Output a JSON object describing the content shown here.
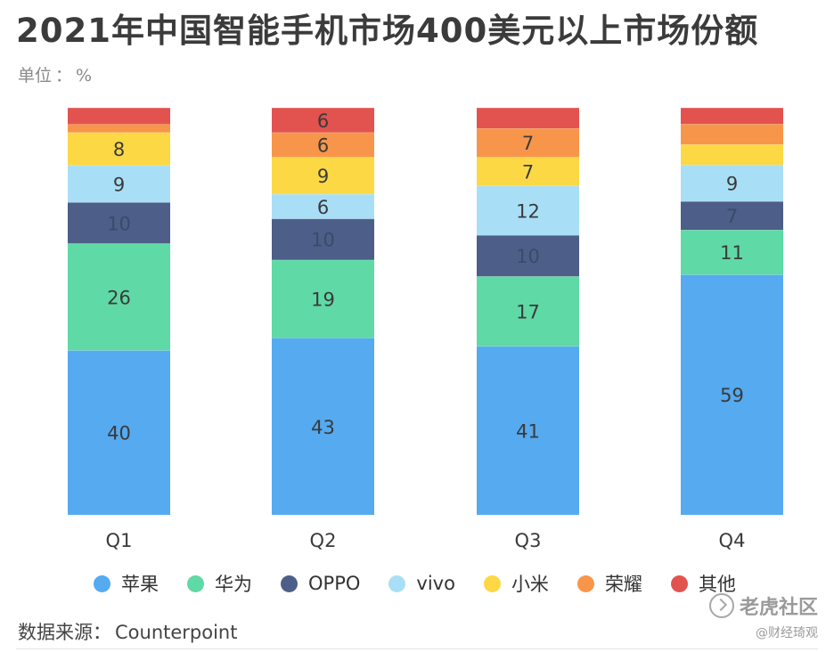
{
  "chart_data": {
    "type": "bar",
    "stacked": true,
    "title": "2021年中国智能手机市场400美元以上市场份额",
    "unit_label": "单位",
    "unit": "%",
    "categories": [
      "Q1",
      "Q2",
      "Q3",
      "Q4"
    ],
    "ylim": [
      0,
      100
    ],
    "series": [
      {
        "name": "苹果",
        "color": "#55aaf0",
        "values": [
          40,
          43,
          41,
          59
        ],
        "labels": [
          "40",
          "43",
          "41",
          "59"
        ]
      },
      {
        "name": "华为",
        "color": "#5fd9a6",
        "values": [
          26,
          19,
          17,
          11
        ],
        "labels": [
          "26",
          "19",
          "17",
          "11"
        ]
      },
      {
        "name": "OPPO",
        "color": "#4d5e88",
        "values": [
          10,
          10,
          10,
          7
        ],
        "labels": [
          "10",
          "10",
          "10",
          "7"
        ]
      },
      {
        "name": "vivo",
        "color": "#a9dff6",
        "values": [
          9,
          6,
          12,
          9
        ],
        "labels": [
          "9",
          "6",
          "12",
          "9"
        ]
      },
      {
        "name": "小米",
        "color": "#fcd845",
        "values": [
          8,
          9,
          7,
          5
        ],
        "labels": [
          "8",
          "9",
          "7",
          ""
        ]
      },
      {
        "name": "荣耀",
        "color": "#f7964a",
        "values": [
          2,
          6,
          7,
          5
        ],
        "labels": [
          "",
          "6",
          "7",
          ""
        ]
      },
      {
        "name": "其他",
        "color": "#e2534f",
        "values": [
          4,
          6,
          5,
          4
        ],
        "labels": [
          "",
          "6",
          "",
          ""
        ]
      }
    ],
    "source_label": "数据来源",
    "source": "Counterpoint"
  },
  "watermark": {
    "main": "老虎社区",
    "sub": "@财经琦观"
  }
}
